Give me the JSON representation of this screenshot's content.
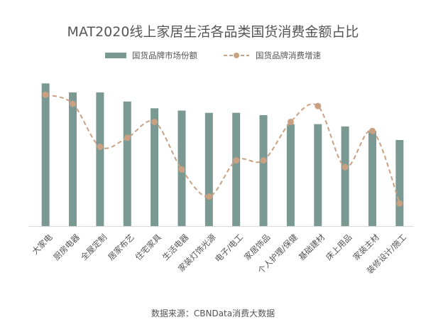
{
  "chart_data": {
    "type": "bar",
    "title": "MAT2020线上家居生活各品类国货消费金额占比",
    "categories": [
      "大家电",
      "厨房电器",
      "全屋定制",
      "居家布艺",
      "住宅家具",
      "生活电器",
      "家装灯饰光源",
      "电子/电工",
      "家居饰品",
      "个人护理/保健",
      "基础建材",
      "床上用品",
      "家装主材",
      "装修设计/施工"
    ],
    "series": [
      {
        "name": "国货品牌市场份额",
        "kind": "bar",
        "color": "#7a9993",
        "values": [
          0.93,
          0.89,
          0.89,
          0.85,
          0.82,
          0.81,
          0.8,
          0.8,
          0.79,
          0.75,
          0.75,
          0.74,
          0.72,
          0.68
        ]
      },
      {
        "name": "国货品牌消费增速",
        "kind": "line",
        "color": "#c9a182",
        "values": [
          0.88,
          0.84,
          0.65,
          0.69,
          0.76,
          0.55,
          0.43,
          0.59,
          0.59,
          0.76,
          0.83,
          0.56,
          0.72,
          0.4
        ]
      }
    ],
    "xlabel": "",
    "ylabel": "",
    "ylim": [
      0.3,
      1.0
    ],
    "grid": false,
    "legend_position": "top"
  },
  "source": "数据来源：CBNData消费大数据"
}
